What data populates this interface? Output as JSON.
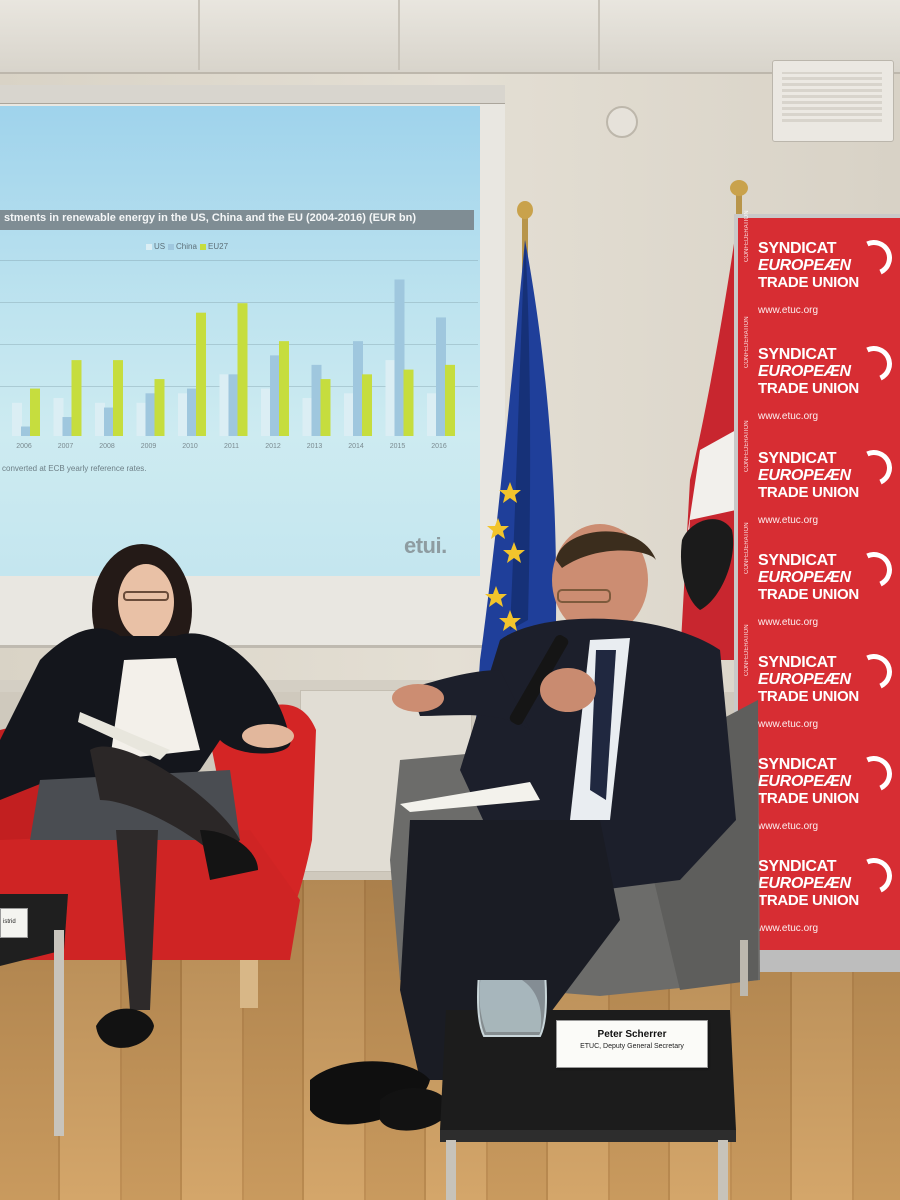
{
  "slide": {
    "title": "stments in renewable energy in the US, China and the EU (2004-2016) (EUR bn)",
    "legend": [
      "US",
      "China",
      "EU27"
    ],
    "note": "converted at ECB yearly reference rates.",
    "logo": "etui."
  },
  "chart_data": {
    "type": "bar",
    "title": "stments in renewable energy in the US, China and the EU (2004-2016) (EUR bn)",
    "categories": [
      "2006",
      "2007",
      "2008",
      "2009",
      "2010",
      "2011",
      "2012",
      "2013",
      "2014",
      "2015",
      "2016"
    ],
    "series": [
      {
        "name": "US",
        "values": [
          7,
          8,
          7,
          7,
          9,
          13,
          10,
          8,
          9,
          16,
          9
        ]
      },
      {
        "name": "China",
        "values": [
          2,
          4,
          6,
          9,
          10,
          13,
          17,
          15,
          20,
          33,
          25
        ]
      },
      {
        "name": "EU27",
        "values": [
          10,
          16,
          16,
          12,
          26,
          28,
          20,
          12,
          13,
          14,
          15
        ]
      }
    ],
    "colors": {
      "US": "#dbeef4",
      "China": "#9fc7de",
      "EU27": "#c6dd3e"
    },
    "grid": true,
    "legend_position": "top-center"
  },
  "banner": {
    "line1": "SYNDICAT",
    "line2": "EUROPEÆN",
    "line3": "TRADE UNION",
    "url": "www.etuc.org",
    "confed": "CONFEDERATION"
  },
  "nameplate": {
    "name": "Peter Scherrer",
    "role": "ETUC, Deputy General Secretary"
  },
  "left_plate": {
    "text": "istrid"
  },
  "colors": {
    "banner_red": "#d72d33",
    "eu_blue": "#1f3f9a",
    "eu_star": "#f2c42c",
    "austria_red": "#c8262f",
    "chair_red": "#d42525",
    "chair_grey": "#6c6c6a"
  }
}
